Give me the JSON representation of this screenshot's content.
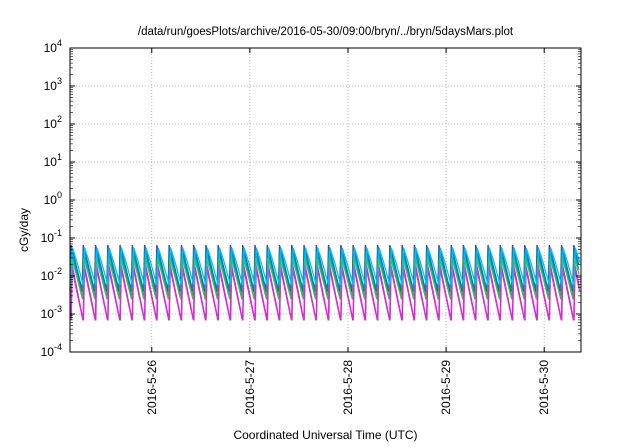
{
  "chart_data": {
    "type": "line",
    "title": "/data/run/goesPlots/archive/2016-05-30/09:00/bryn/../bryn/5daysMars.plot",
    "xlabel": "Coordinated Universal Time (UTC)",
    "ylabel": "cGy/day",
    "yscale": "log",
    "ylim": [
      0.0001,
      10000
    ],
    "x_start": "2016-5-25 04:00",
    "x_end": "2016-5-30 09:00",
    "y_ticks": [
      {
        "base": "10",
        "exp": "-4",
        "value": 0.0001
      },
      {
        "base": "10",
        "exp": "-3",
        "value": 0.001
      },
      {
        "base": "10",
        "exp": "-2",
        "value": 0.01
      },
      {
        "base": "10",
        "exp": "-1",
        "value": 0.1
      },
      {
        "base": "10",
        "exp": "0",
        "value": 1
      },
      {
        "base": "10",
        "exp": "1",
        "value": 10
      },
      {
        "base": "10",
        "exp": "2",
        "value": 100
      },
      {
        "base": "10",
        "exp": "3",
        "value": 1000
      },
      {
        "base": "10",
        "exp": "4",
        "value": 10000
      }
    ],
    "x_ticks": [
      "2016-5-26",
      "2016-5-27",
      "2016-5-28",
      "2016-5-29",
      "2016-5-30"
    ],
    "grid": true,
    "series_pattern": {
      "cycles_per_day": 8,
      "curves": [
        {
          "color": "#d40000",
          "peak": 0.065,
          "trough": 0.004
        },
        {
          "color": "#0077cc",
          "peak": 0.06,
          "trough": 0.0045
        },
        {
          "color": "#00a0a0",
          "peak": 0.045,
          "trough": 0.003
        },
        {
          "color": "#33cc33",
          "peak": 0.03,
          "trough": 0.0025
        },
        {
          "color": "#ff00ff",
          "peak": 0.02,
          "trough": 0.0008
        },
        {
          "color": "#cc33cc",
          "peak": 0.015,
          "trough": 0.0007
        },
        {
          "color": "#00bfff",
          "peak": 0.055,
          "trough": 0.006
        }
      ]
    }
  }
}
